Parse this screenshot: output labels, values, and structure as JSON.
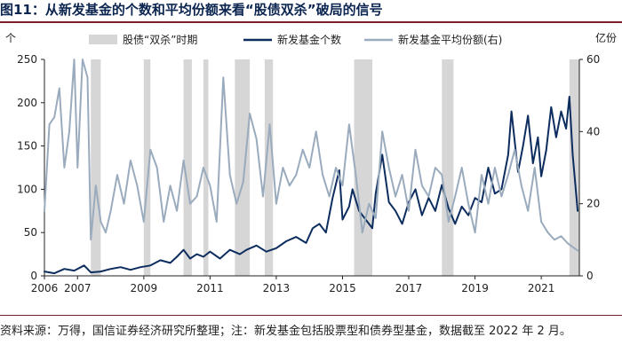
{
  "title": "图11：从新发基金的个数和平均份额来看“股债双杀”破局的信号",
  "source": "资料来源：万得，国信证券经济研究所整理；注：新发基金包括股票型和债券型基金，数据截至 2022 年 2 月。",
  "colors": {
    "count": "#0d2d5e",
    "avg": "#9aabbd",
    "shade": "#d6d6d6",
    "rule": "#7a1f2b"
  },
  "chart_data": {
    "type": "line",
    "y_left_label": "个",
    "y_right_label": "亿份",
    "y_left_lim": [
      0,
      250
    ],
    "y_right_lim": [
      0,
      60
    ],
    "y_left_ticks": [
      "0",
      "50",
      "100",
      "150",
      "200",
      "250"
    ],
    "y_right_ticks": [
      "0",
      "20",
      "40",
      "60"
    ],
    "x_lim": [
      2006.0,
      2022.15
    ],
    "x_ticks": [
      "2006",
      "2007",
      "2009",
      "2011",
      "2013",
      "2015",
      "2017",
      "2019",
      "2021"
    ],
    "legend": [
      "股债“双杀”时期",
      "新发基金个数",
      "新发基金平均份额(右)"
    ],
    "shaded_periods": [
      [
        2007.4,
        2007.7
      ],
      [
        2009.0,
        2009.2
      ],
      [
        2010.2,
        2010.45
      ],
      [
        2010.8,
        2010.95
      ],
      [
        2011.75,
        2012.2
      ],
      [
        2012.65,
        2012.9
      ],
      [
        2015.35,
        2015.9
      ],
      [
        2018.0,
        2018.35
      ],
      [
        2021.85,
        2022.15
      ]
    ],
    "series": [
      {
        "name": "新发基金个数",
        "axis": "left",
        "x": [
          2006.0,
          2006.3,
          2006.6,
          2006.9,
          2007.2,
          2007.4,
          2007.7,
          2008.0,
          2008.3,
          2008.6,
          2008.9,
          2009.2,
          2009.5,
          2009.8,
          2010.0,
          2010.2,
          2010.4,
          2010.6,
          2010.8,
          2011.0,
          2011.3,
          2011.6,
          2011.9,
          2012.1,
          2012.4,
          2012.7,
          2013.0,
          2013.3,
          2013.6,
          2013.9,
          2014.1,
          2014.3,
          2014.5,
          2014.7,
          2014.9,
          2015.0,
          2015.2,
          2015.3,
          2015.5,
          2015.7,
          2015.9,
          2016.0,
          2016.2,
          2016.4,
          2016.6,
          2016.8,
          2017.0,
          2017.2,
          2017.4,
          2017.6,
          2017.8,
          2018.0,
          2018.2,
          2018.4,
          2018.6,
          2018.8,
          2019.0,
          2019.2,
          2019.4,
          2019.6,
          2019.8,
          2020.0,
          2020.1,
          2020.3,
          2020.45,
          2020.6,
          2020.75,
          2020.9,
          2021.0,
          2021.15,
          2021.3,
          2021.45,
          2021.6,
          2021.75,
          2021.85,
          2021.95,
          2022.1
        ],
        "values": [
          5,
          3,
          8,
          6,
          12,
          4,
          5,
          8,
          10,
          7,
          10,
          12,
          18,
          15,
          22,
          30,
          20,
          25,
          22,
          28,
          20,
          30,
          25,
          30,
          35,
          28,
          32,
          40,
          45,
          38,
          55,
          60,
          50,
          90,
          122,
          65,
          80,
          100,
          75,
          65,
          55,
          95,
          140,
          85,
          75,
          60,
          85,
          100,
          70,
          90,
          75,
          105,
          78,
          60,
          80,
          70,
          90,
          85,
          125,
          95,
          100,
          140,
          190,
          120,
          150,
          185,
          130,
          160,
          115,
          145,
          195,
          160,
          190,
          170,
          207,
          140,
          75
        ]
      },
      {
        "name": "新发基金平均份额(右)",
        "axis": "right",
        "x": [
          2006.0,
          2006.15,
          2006.3,
          2006.45,
          2006.6,
          2006.75,
          2006.9,
          2007.0,
          2007.15,
          2007.3,
          2007.4,
          2007.55,
          2007.7,
          2007.85,
          2008.0,
          2008.2,
          2008.4,
          2008.6,
          2008.8,
          2009.0,
          2009.2,
          2009.4,
          2009.6,
          2009.8,
          2010.0,
          2010.2,
          2010.4,
          2010.6,
          2010.8,
          2011.0,
          2011.2,
          2011.4,
          2011.6,
          2011.8,
          2012.0,
          2012.2,
          2012.4,
          2012.6,
          2012.8,
          2013.0,
          2013.2,
          2013.4,
          2013.6,
          2013.8,
          2014.0,
          2014.2,
          2014.4,
          2014.6,
          2014.8,
          2015.0,
          2015.2,
          2015.4,
          2015.6,
          2015.8,
          2016.0,
          2016.2,
          2016.4,
          2016.6,
          2016.8,
          2017.0,
          2017.2,
          2017.4,
          2017.6,
          2017.8,
          2018.0,
          2018.2,
          2018.4,
          2018.6,
          2018.8,
          2019.0,
          2019.2,
          2019.4,
          2019.6,
          2019.8,
          2020.0,
          2020.2,
          2020.4,
          2020.6,
          2020.8,
          2021.0,
          2021.2,
          2021.4,
          2021.6,
          2021.8,
          2022.1
        ],
        "values": [
          18,
          42,
          44,
          52,
          30,
          40,
          60,
          30,
          60,
          55,
          10,
          25,
          15,
          12,
          18,
          28,
          20,
          32,
          25,
          15,
          35,
          30,
          15,
          25,
          18,
          32,
          20,
          22,
          30,
          25,
          15,
          55,
          28,
          20,
          26,
          45,
          38,
          22,
          42,
          20,
          30,
          25,
          28,
          35,
          30,
          40,
          28,
          22,
          30,
          25,
          42,
          28,
          12,
          20,
          16,
          40,
          30,
          22,
          28,
          18,
          35,
          25,
          22,
          30,
          28,
          15,
          22,
          30,
          20,
          12,
          28,
          20,
          30,
          22,
          28,
          35,
          25,
          18,
          30,
          15,
          12,
          10,
          11,
          9,
          7
        ]
      }
    ]
  }
}
